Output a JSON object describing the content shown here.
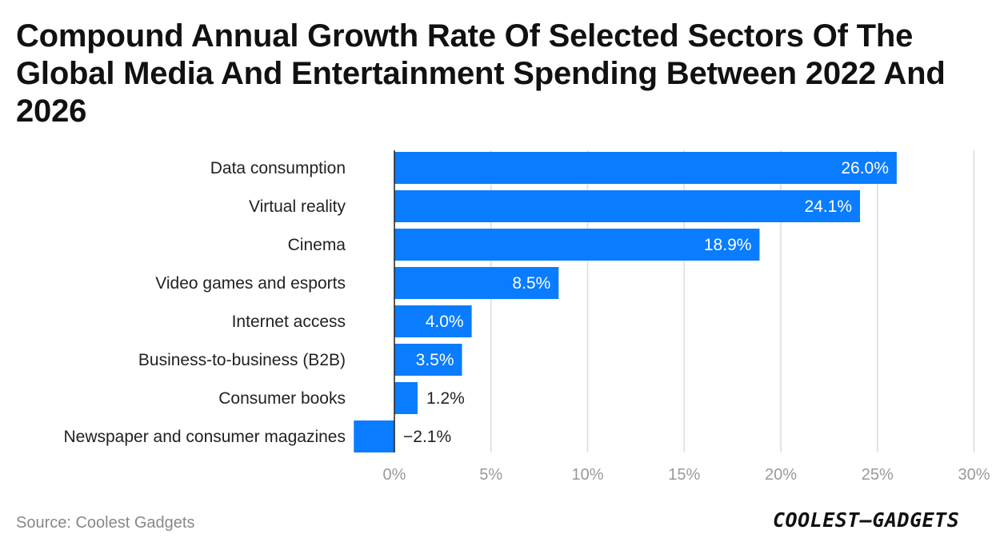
{
  "chart_data": {
    "type": "bar",
    "orientation": "horizontal",
    "title": "Compound Annual Growth Rate Of Selected Sectors Of The Global Media And Entertainment Spending Between 2022 And 2026",
    "categories": [
      "Data consumption",
      "Virtual reality",
      "Cinema",
      "Video games and esports",
      "Internet access",
      "Business-to-business (B2B)",
      "Consumer books",
      "Newspaper and consumer magazines"
    ],
    "values": [
      26.0,
      24.1,
      18.9,
      8.5,
      4.0,
      3.5,
      1.2,
      -2.1
    ],
    "data_labels": [
      "26.0%",
      "24.1%",
      "18.9%",
      "8.5%",
      "4.0%",
      "3.5%",
      "1.2%",
      "−2.1%"
    ],
    "x_ticks": [
      0,
      5,
      10,
      15,
      20,
      25,
      30
    ],
    "x_tick_labels": [
      "0%",
      "5%",
      "10%",
      "15%",
      "20%",
      "25%",
      "30%"
    ],
    "xlim": [
      -2.1,
      30
    ],
    "xlabel": "",
    "ylabel": "",
    "grid": "vertical",
    "bar_color": "#0a7cff"
  },
  "footer": {
    "source": "Source: Coolest Gadgets",
    "logo_text": "COOLEST–GADGETS"
  }
}
